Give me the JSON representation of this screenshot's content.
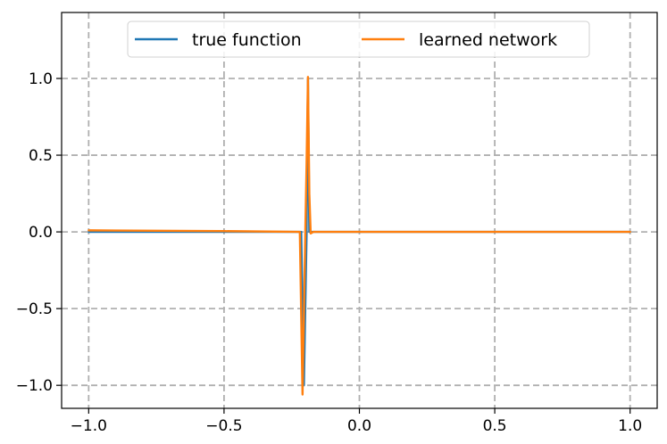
{
  "chart_data": {
    "type": "line",
    "title": "",
    "xlabel": "",
    "ylabel": "",
    "xlim": [
      -1.1,
      1.1
    ],
    "ylim": [
      -1.15,
      1.43
    ],
    "grid": true,
    "grid_style": "dashed",
    "legend_position": "upper-center",
    "legend_columns": 2,
    "x_ticks": [
      -1.0,
      -0.5,
      0.0,
      0.5,
      1.0
    ],
    "x_tick_labels": [
      "−1.0",
      "−0.5",
      "0.0",
      "0.5",
      "1.0"
    ],
    "y_ticks": [
      -1.0,
      -0.5,
      0.0,
      0.5,
      1.0
    ],
    "y_tick_labels": [
      "−1.0",
      "−0.5",
      "0.0",
      "0.5",
      "1.0"
    ],
    "series": [
      {
        "name": "true function",
        "color": "#1f77b4",
        "x": [
          -1.0,
          -0.215,
          -0.205,
          -0.195,
          -0.19,
          -0.185,
          -0.175,
          0.0,
          1.0
        ],
        "y": [
          0.0,
          0.0,
          -1.0,
          0.0,
          1.0,
          0.0,
          0.0,
          0.0,
          0.0
        ]
      },
      {
        "name": "learned network",
        "color": "#ff7f0e",
        "x": [
          -1.0,
          -0.5,
          -0.22,
          -0.21,
          -0.2,
          -0.195,
          -0.19,
          -0.185,
          -0.18,
          -0.17,
          0.0,
          0.5,
          1.0
        ],
        "y": [
          0.01,
          0.005,
          0.0,
          -1.06,
          -0.02,
          0.45,
          1.01,
          0.25,
          -0.01,
          0.0,
          0.0,
          0.0,
          0.0
        ]
      }
    ]
  }
}
